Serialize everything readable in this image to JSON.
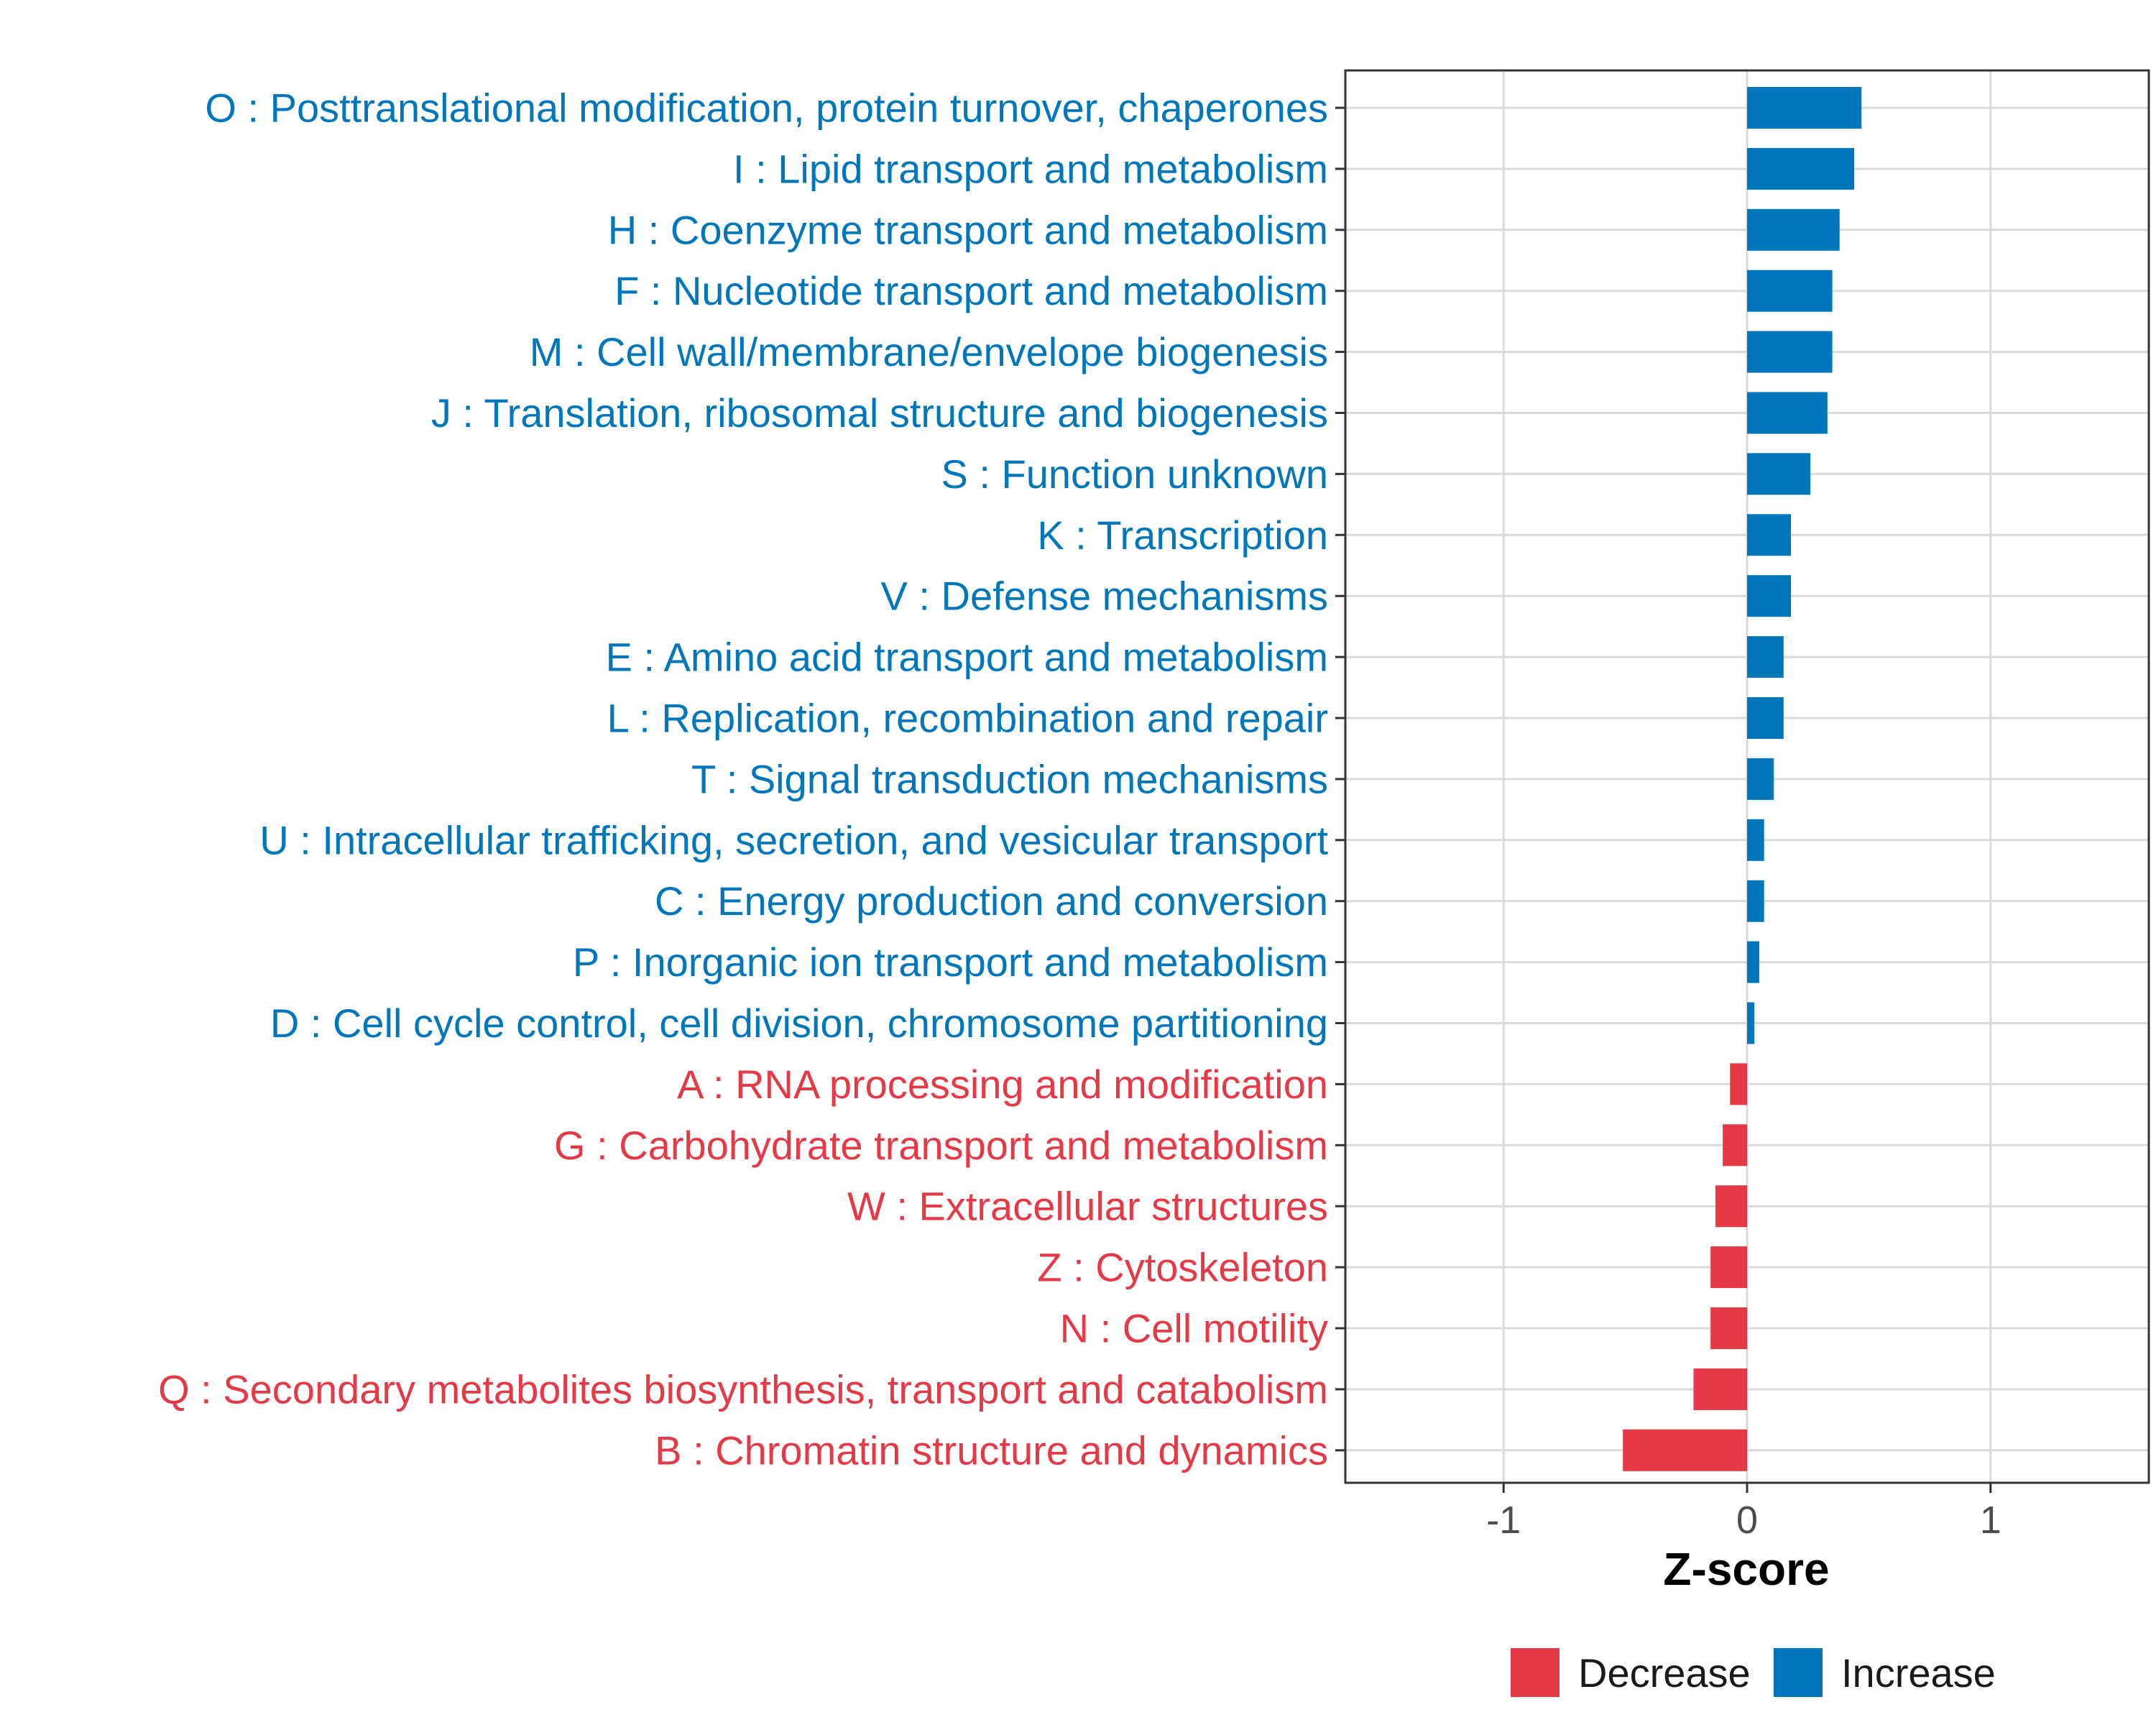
{
  "colors": {
    "increase": "#0077BB",
    "decrease": "#E63946",
    "grid": "#d9d9d9",
    "axis": "#333333"
  },
  "chart_data": {
    "type": "bar",
    "orientation": "horizontal",
    "xlabel": "Z-score",
    "xlim": [
      -1.65,
      1.65
    ],
    "xticks": [
      -1,
      0,
      1
    ],
    "xtick_labels": [
      "-1",
      "0",
      "1"
    ],
    "grid": true,
    "legend": {
      "position": "bottom",
      "entries": [
        {
          "label": "Decrease",
          "color_key": "decrease"
        },
        {
          "label": "Increase",
          "color_key": "increase"
        }
      ]
    },
    "categories": [
      "O : Posttranslational modification, protein turnover, chaperones",
      "I : Lipid transport and metabolism",
      "H : Coenzyme transport and metabolism",
      "F : Nucleotide transport and metabolism",
      "M : Cell wall/membrane/envelope biogenesis",
      "J : Translation, ribosomal structure and biogenesis",
      "S : Function unknown",
      "K : Transcription",
      "V : Defense mechanisms",
      "E : Amino acid transport and metabolism",
      "L : Replication, recombination and repair",
      "T : Signal transduction mechanisms",
      "U : Intracellular trafficking, secretion, and vesicular transport",
      "C : Energy production and conversion",
      "P : Inorganic ion transport and metabolism",
      "D : Cell cycle control, cell division, chromosome partitioning",
      "A : RNA processing and modification",
      "G : Carbohydrate transport and metabolism",
      "W : Extracellular structures",
      "Z : Cytoskeleton",
      "N : Cell motility",
      "Q : Secondary metabolites biosynthesis, transport and catabolism",
      "B : Chromatin structure and dynamics"
    ],
    "values": [
      0.47,
      0.44,
      0.38,
      0.35,
      0.35,
      0.33,
      0.26,
      0.18,
      0.18,
      0.15,
      0.15,
      0.11,
      0.07,
      0.07,
      0.05,
      0.03,
      -0.07,
      -0.1,
      -0.13,
      -0.15,
      -0.15,
      -0.22,
      -0.51
    ],
    "groups": [
      "Increase",
      "Increase",
      "Increase",
      "Increase",
      "Increase",
      "Increase",
      "Increase",
      "Increase",
      "Increase",
      "Increase",
      "Increase",
      "Increase",
      "Increase",
      "Increase",
      "Increase",
      "Increase",
      "Decrease",
      "Decrease",
      "Decrease",
      "Decrease",
      "Decrease",
      "Decrease",
      "Decrease"
    ]
  }
}
